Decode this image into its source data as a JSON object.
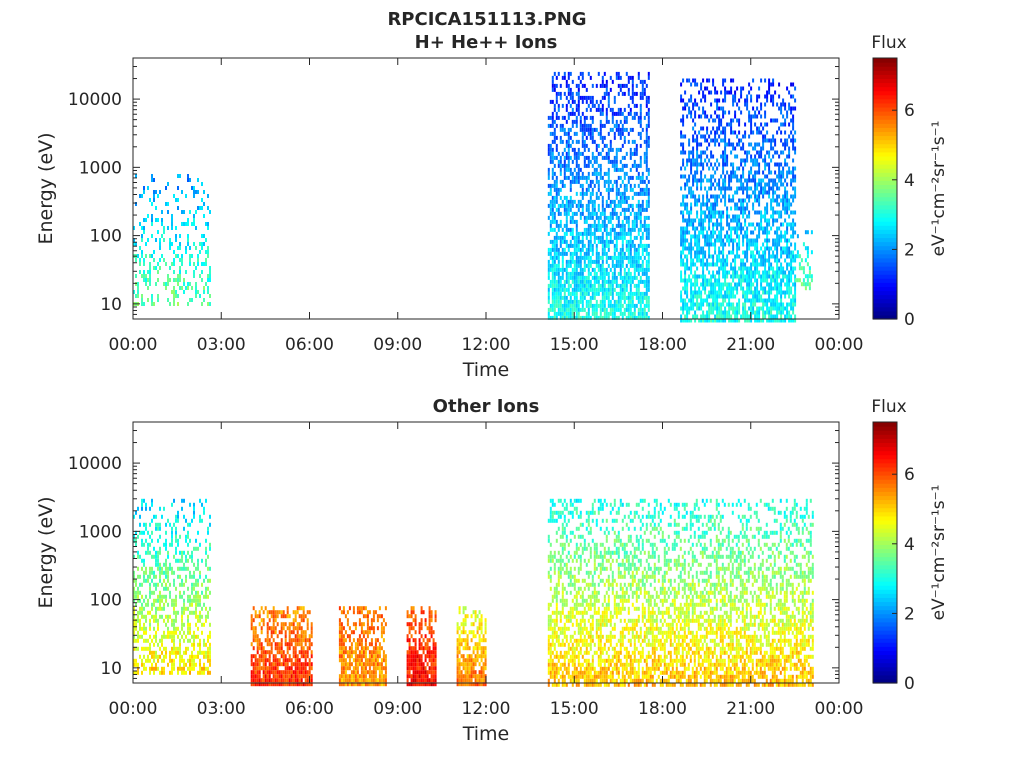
{
  "figure": {
    "title": "RPCICA151113.PNG"
  },
  "chart_data": [
    {
      "type": "heatmap",
      "title": "H+ He++ Ions",
      "xlabel": "Time",
      "ylabel": "Energy (eV)",
      "x_ticks": [
        "00:00",
        "03:00",
        "06:00",
        "09:00",
        "12:00",
        "15:00",
        "18:00",
        "21:00",
        "00:00"
      ],
      "xlim_hours": [
        0,
        24
      ],
      "y_scale": "log",
      "y_ticks": [
        "10",
        "100",
        "1000",
        "10000"
      ],
      "ylim": [
        6,
        40000
      ],
      "colorbar": {
        "title": "Flux",
        "label": "eV⁻¹cm⁻²sr⁻¹s⁻¹",
        "ticks": [
          "0",
          "2",
          "4",
          "6"
        ],
        "range": [
          0,
          7.5
        ],
        "colormap": "jet"
      },
      "regions": [
        {
          "t_start": 0.0,
          "t_end": 2.6,
          "e_min": 10,
          "e_max": 800,
          "level_low": 3.6,
          "level_high": 2.0,
          "density": 0.35
        },
        {
          "t_start": 14.1,
          "t_end": 17.5,
          "e_min": 6,
          "e_max": 25000,
          "level_low": 3.0,
          "level_high": 1.2,
          "density": 0.85
        },
        {
          "t_start": 18.6,
          "t_end": 22.5,
          "e_min": 6,
          "e_max": 20000,
          "level_low": 3.0,
          "level_high": 1.2,
          "density": 0.8
        },
        {
          "t_start": 22.5,
          "t_end": 23.1,
          "e_min": 15,
          "e_max": 120,
          "level_low": 3.6,
          "level_high": 2.6,
          "density": 0.4
        }
      ]
    },
    {
      "type": "heatmap",
      "title": "Other Ions",
      "xlabel": "Time",
      "ylabel": "Energy (eV)",
      "x_ticks": [
        "00:00",
        "03:00",
        "06:00",
        "09:00",
        "12:00",
        "15:00",
        "18:00",
        "21:00",
        "00:00"
      ],
      "xlim_hours": [
        0,
        24
      ],
      "y_scale": "log",
      "y_ticks": [
        "10",
        "100",
        "1000",
        "10000"
      ],
      "ylim": [
        6,
        40000
      ],
      "colorbar": {
        "title": "Flux",
        "label": "eV⁻¹cm⁻²sr⁻¹s⁻¹",
        "ticks": [
          "0",
          "2",
          "4",
          "6"
        ],
        "range": [
          0,
          7.5
        ],
        "colormap": "jet"
      },
      "regions": [
        {
          "t_start": 0.0,
          "t_end": 2.6,
          "e_min": 8,
          "e_max": 3000,
          "level_low": 5.0,
          "level_high": 2.5,
          "density": 0.6
        },
        {
          "t_start": 4.0,
          "t_end": 6.1,
          "e_min": 6,
          "e_max": 80,
          "level_low": 6.3,
          "level_high": 5.5,
          "density": 1.0
        },
        {
          "t_start": 7.0,
          "t_end": 8.6,
          "e_min": 6,
          "e_max": 80,
          "level_low": 5.4,
          "level_high": 5.8,
          "density": 1.0
        },
        {
          "t_start": 9.3,
          "t_end": 10.3,
          "e_min": 6,
          "e_max": 80,
          "level_low": 6.6,
          "level_high": 5.8,
          "density": 1.0
        },
        {
          "t_start": 11.0,
          "t_end": 12.0,
          "e_min": 6,
          "e_max": 80,
          "level_low": 5.8,
          "level_high": 4.4,
          "density": 1.0
        },
        {
          "t_start": 14.1,
          "t_end": 23.1,
          "e_min": 6,
          "e_max": 3000,
          "level_low": 5.2,
          "level_high": 3.0,
          "density": 0.75
        }
      ]
    }
  ]
}
